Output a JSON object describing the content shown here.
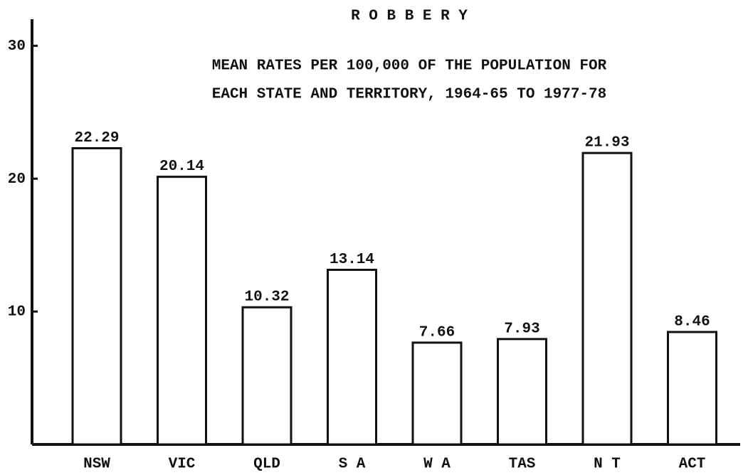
{
  "chart_data": {
    "type": "bar",
    "title": "R O B B E R Y",
    "subtitle": [
      "MEAN RATES PER 100,000 OF THE POPULATION FOR",
      "EACH STATE AND TERRITORY, 1964-65 TO 1977-78"
    ],
    "categories": [
      "NSW",
      "VIC",
      "QLD",
      "S A",
      "W A",
      "TAS",
      "N T",
      "ACT"
    ],
    "values": [
      22.29,
      20.14,
      10.32,
      13.14,
      7.66,
      7.93,
      21.93,
      8.46
    ],
    "color": "#ffffff",
    "ylim": [
      0,
      32
    ],
    "yticks": [
      10,
      20,
      30
    ],
    "grid": false
  }
}
